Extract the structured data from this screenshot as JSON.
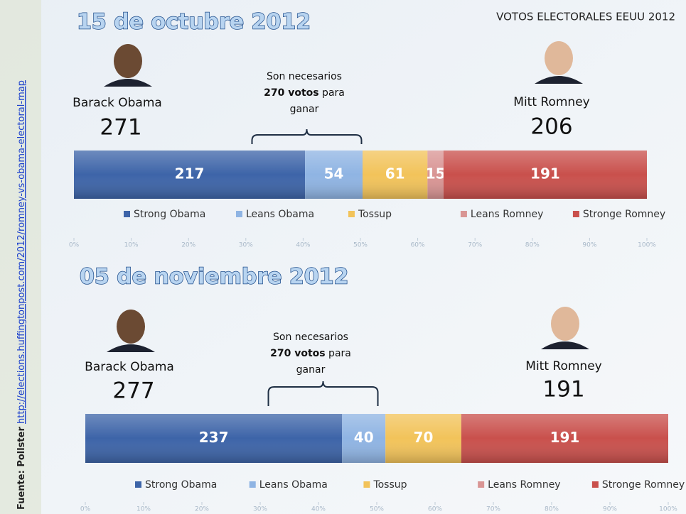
{
  "title": "VOTOS ELECTORALES EEUU 2012",
  "source": {
    "label": "Fuente: Pollster",
    "url": "http://elections.huffingtonpost.com/2012/romney-vs-obama-electoral-map"
  },
  "chart_data": [
    {
      "type": "stacked_bar",
      "title": "15 de octubre 2012",
      "candidates": [
        {
          "name": "Barack Obama",
          "total": 271
        },
        {
          "name": "Mitt Romney",
          "total": 206
        }
      ],
      "note": {
        "line1": "Son necesarios",
        "bold": "270 votos",
        "rest": " para",
        "line3": "ganar"
      },
      "threshold": 270,
      "series": [
        {
          "name": "Strong Obama",
          "color": "#3d64a8",
          "values": [
            217
          ]
        },
        {
          "name": "Leans Obama",
          "color": "#8fb4e3",
          "values": [
            54
          ]
        },
        {
          "name": "Tossup",
          "color": "#f2c35a",
          "values": [
            61
          ]
        },
        {
          "name": "Leans Romney",
          "color": "#d99594",
          "values": [
            15
          ]
        },
        {
          "name": "Stronge Romney",
          "color": "#c9504c",
          "values": [
            191
          ]
        }
      ],
      "xlim": [
        0,
        538
      ],
      "xticks": [
        {
          "value": 0,
          "label": "0%"
        },
        {
          "value": 53.8,
          "label": "10%"
        },
        {
          "value": 107.6,
          "label": "20%"
        },
        {
          "value": 161.4,
          "label": "30%"
        },
        {
          "value": 215.2,
          "label": "40%"
        },
        {
          "value": 269,
          "label": "50%"
        },
        {
          "value": 322.8,
          "label": "60%"
        },
        {
          "value": 376.6,
          "label": "70%"
        },
        {
          "value": 430.4,
          "label": "80%"
        },
        {
          "value": 484.2,
          "label": "90%"
        },
        {
          "value": 538,
          "label": "100%"
        }
      ]
    },
    {
      "type": "stacked_bar",
      "title": "05 de noviembre 2012",
      "candidates": [
        {
          "name": "Barack Obama",
          "total": 277
        },
        {
          "name": "Mitt Romney",
          "total": 191
        }
      ],
      "note": {
        "line1": "Son necesarios",
        "bold": "270 votos",
        "rest": " para",
        "line3": "ganar"
      },
      "threshold": 270,
      "series": [
        {
          "name": "Strong Obama",
          "color": "#3d64a8",
          "values": [
            237
          ]
        },
        {
          "name": "Leans Obama",
          "color": "#8fb4e3",
          "values": [
            40
          ]
        },
        {
          "name": "Tossup",
          "color": "#f2c35a",
          "values": [
            70
          ]
        },
        {
          "name": "Leans Romney",
          "color": "#d99594",
          "values": [
            0
          ]
        },
        {
          "name": "Stronge Romney",
          "color": "#c9504c",
          "values": [
            191
          ]
        }
      ],
      "xlim": [
        0,
        538
      ],
      "xticks": [
        {
          "value": 0,
          "label": "0%"
        },
        {
          "value": 53.8,
          "label": "10%"
        },
        {
          "value": 107.6,
          "label": "20%"
        },
        {
          "value": 161.4,
          "label": "30%"
        },
        {
          "value": 215.2,
          "label": "40%"
        },
        {
          "value": 269,
          "label": "50%"
        },
        {
          "value": 322.8,
          "label": "60%"
        },
        {
          "value": 376.6,
          "label": "70%"
        },
        {
          "value": 430.4,
          "label": "80%"
        },
        {
          "value": 484.2,
          "label": "90%"
        },
        {
          "value": 538,
          "label": "100%"
        }
      ]
    }
  ]
}
